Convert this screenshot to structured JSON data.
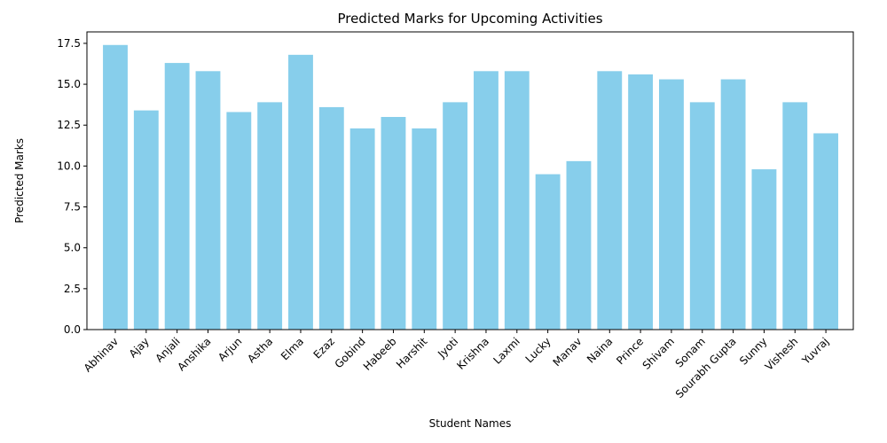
{
  "chart_data": {
    "type": "bar",
    "title": "Predicted Marks for Upcoming Activities",
    "xlabel": "Student Names",
    "ylabel": "Predicted Marks",
    "ylim": [
      0,
      18.2
    ],
    "yticks": [
      "0.0",
      "2.5",
      "5.0",
      "7.5",
      "10.0",
      "12.5",
      "15.0",
      "17.5"
    ],
    "bar_color": "#87ceeb",
    "grid": false,
    "categories": [
      "Abhinav",
      "Ajay",
      "Anjali",
      "Anshika",
      "Arjun",
      "Astha",
      "Elma",
      "Ezaz",
      "Gobind",
      "Habeeb",
      "Harshit",
      "Jyoti",
      "Krishna",
      "Laxmi",
      "Lucky",
      "Manav",
      "Naina",
      "Prince",
      "Shivam",
      "Sonam",
      "Sourabh Gupta",
      "Sunny",
      "Vishesh",
      "Yuvraj"
    ],
    "values": [
      17.4,
      13.4,
      16.3,
      15.8,
      13.3,
      13.9,
      16.8,
      13.6,
      12.3,
      13.0,
      12.3,
      13.9,
      15.8,
      15.8,
      9.5,
      10.3,
      15.8,
      15.6,
      15.3,
      13.9,
      15.3,
      9.8,
      13.9,
      12.0
    ]
  }
}
